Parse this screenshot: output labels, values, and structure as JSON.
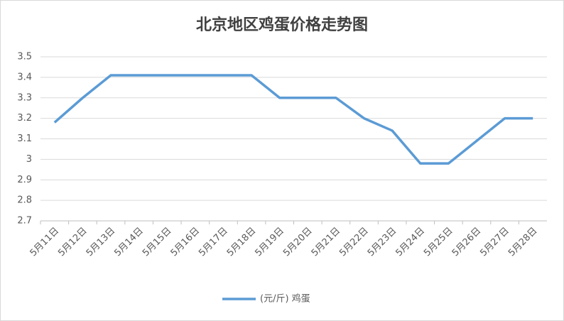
{
  "chart_data": {
    "type": "line",
    "title": "北京地区鸡蛋价格走势图",
    "categories": [
      "5月11日",
      "5月12日",
      "5月13日",
      "5月14日",
      "5月15日",
      "5月16日",
      "5月17日",
      "5月18日",
      "5月19日",
      "5月20日",
      "5月21日",
      "5月22日",
      "5月23日",
      "5月24日",
      "5月25日",
      "5月26日",
      "5月27日",
      "5月28日"
    ],
    "series": [
      {
        "name": "(元/斤) 鸡蛋",
        "color": "#5b9bd5",
        "values": [
          3.18,
          3.3,
          3.41,
          3.41,
          3.41,
          3.41,
          3.41,
          3.41,
          3.3,
          3.3,
          3.3,
          3.2,
          3.14,
          2.98,
          2.98,
          3.09,
          3.2,
          3.2
        ]
      }
    ],
    "ylim": [
      2.7,
      3.5
    ],
    "yticks": [
      2.7,
      2.8,
      2.9,
      3,
      3.1,
      3.2,
      3.3,
      3.4,
      3.5
    ],
    "grid": true
  }
}
